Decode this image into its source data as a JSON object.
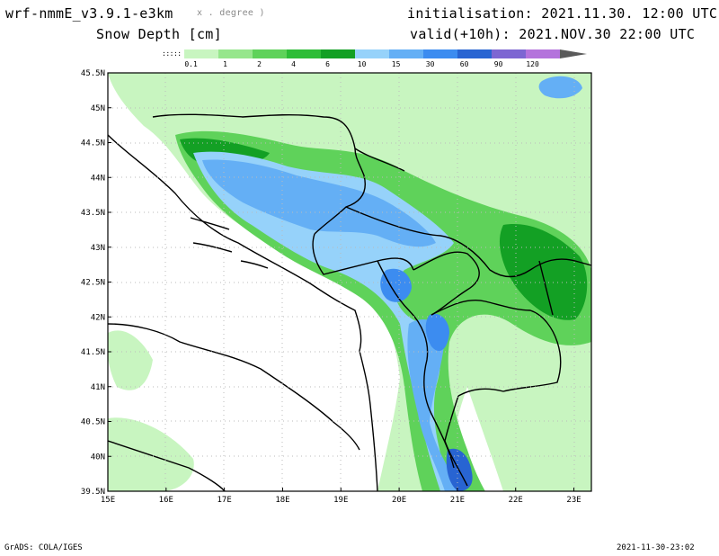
{
  "header": {
    "model": "wrf-nmmE_v3.9.1-e3km",
    "degree_note": "x . degree )",
    "field": "Snow Depth [cm]",
    "init": "initialisation: 2021.11.30. 12:00 UTC",
    "valid": "valid(+10h): 2021.NOV.30 22:00 UTC"
  },
  "colorbar": {
    "low_mark": ":::::",
    "labels": [
      "0.1",
      "1",
      "2",
      "4",
      "6",
      "10",
      "15",
      "30",
      "60",
      "90",
      "120"
    ],
    "colors": [
      "#c8f5c0",
      "#96e68c",
      "#5fd25a",
      "#2dbd37",
      "#13a024",
      "#96d2fa",
      "#64aff5",
      "#3c8cf0",
      "#2864d2",
      "#7d66d2",
      "#b473dc",
      "#5a5a5a"
    ]
  },
  "map": {
    "lat_labels": [
      "45.5N",
      "45N",
      "44.5N",
      "44N",
      "43.5N",
      "43N",
      "42.5N",
      "42N",
      "41.5N",
      "41N",
      "40.5N",
      "40N",
      "39.5N"
    ],
    "lon_labels": [
      "15E",
      "16E",
      "17E",
      "18E",
      "19E",
      "20E",
      "21E",
      "22E",
      "23E"
    ],
    "extent": {
      "lon": [
        15,
        23.3
      ],
      "lat": [
        39.5,
        45.5
      ]
    }
  },
  "footer": {
    "credit": "GrADS: COLA/IGES",
    "timestamp": "2021-11-30-23:02"
  }
}
